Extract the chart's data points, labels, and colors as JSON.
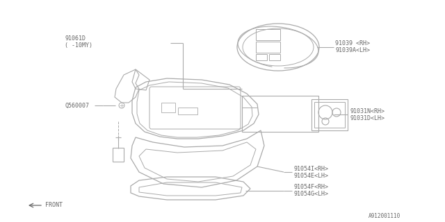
{
  "bg_color": "#ffffff",
  "diagram_id": "A912001110",
  "labels": {
    "part1_line1": "91061D",
    "part1_line2": "( -10MY)",
    "part2": "Q560007",
    "part3_line1": "91039 <RH>",
    "part3_line2": "91039A<LH>",
    "part4_line1": "91031N<RH>",
    "part4_line2": "91031D<LH>",
    "part5_line1": "91054I<RH>",
    "part5_line2": "91054E<LH>",
    "part6_line1": "91054F<RH>",
    "part6_line2": "91054G<LH>"
  },
  "line_color": "#aaaaaa",
  "text_color": "#666666",
  "font_size": 6.0
}
